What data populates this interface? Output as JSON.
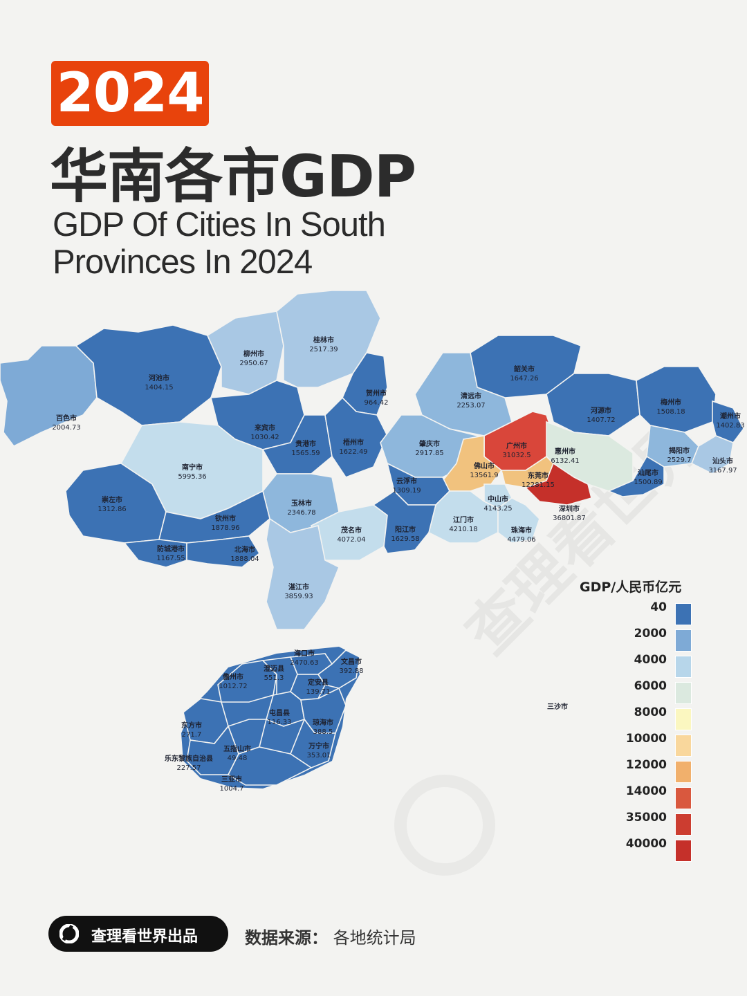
{
  "header": {
    "year": "2024",
    "title_zh": "华南各市GDP",
    "title_en_line1": "GDP Of Cities In South",
    "title_en_line2": "Provinces In 2024"
  },
  "legend": {
    "title": "GDP/人民币亿元",
    "items": [
      {
        "label": "40",
        "color": "#3c72b4"
      },
      {
        "label": "2000",
        "color": "#7eaad6"
      },
      {
        "label": "4000",
        "color": "#b7d6ea"
      },
      {
        "label": "6000",
        "color": "#dbe9df"
      },
      {
        "label": "8000",
        "color": "#fbf7c0"
      },
      {
        "label": "10000",
        "color": "#f9d79c"
      },
      {
        "label": "12000",
        "color": "#f1b06c"
      },
      {
        "label": "14000",
        "color": "#d9583e"
      },
      {
        "label": "35000",
        "color": "#cc3d30"
      },
      {
        "label": "40000",
        "color": "#c5302a"
      }
    ]
  },
  "cities": [
    {
      "name": "百色市",
      "value": "2004.73",
      "color": "#7eaad6"
    },
    {
      "name": "河池市",
      "value": "1404.15",
      "color": "#3c72b4"
    },
    {
      "name": "柳州市",
      "value": "2950.67",
      "color": "#a9c8e4"
    },
    {
      "name": "桂林市",
      "value": "2517.39",
      "color": "#a9c8e4"
    },
    {
      "name": "贺州市",
      "value": "964.42",
      "color": "#3c72b4"
    },
    {
      "name": "来宾市",
      "value": "1030.42",
      "color": "#3c72b4"
    },
    {
      "name": "贵港市",
      "value": "1565.59",
      "color": "#3c72b4"
    },
    {
      "name": "梧州市",
      "value": "1622.49",
      "color": "#3c72b4"
    },
    {
      "name": "南宁市",
      "value": "5995.36",
      "color": "#c3ddec"
    },
    {
      "name": "崇左市",
      "value": "1312.86",
      "color": "#3c72b4"
    },
    {
      "name": "玉林市",
      "value": "2346.78",
      "color": "#8eb7dc"
    },
    {
      "name": "钦州市",
      "value": "1878.96",
      "color": "#3c72b4"
    },
    {
      "name": "防城港市",
      "value": "1167.55",
      "color": "#3c72b4"
    },
    {
      "name": "北海市",
      "value": "1888.04",
      "color": "#3c72b4"
    },
    {
      "name": "韶关市",
      "value": "1647.26",
      "color": "#3c72b4"
    },
    {
      "name": "清远市",
      "value": "2253.07",
      "color": "#8eb7dc"
    },
    {
      "name": "河源市",
      "value": "1407.72",
      "color": "#3c72b4"
    },
    {
      "name": "梅州市",
      "value": "1508.18",
      "color": "#3c72b4"
    },
    {
      "name": "潮州市",
      "value": "1402.83",
      "color": "#3c72b4"
    },
    {
      "name": "肇庆市",
      "value": "2917.85",
      "color": "#8eb7dc"
    },
    {
      "name": "广州市",
      "value": "31032.5",
      "color": "#d9463a"
    },
    {
      "name": "惠州市",
      "value": "6132.41",
      "color": "#dbe9df"
    },
    {
      "name": "揭阳市",
      "value": "2529.7",
      "color": "#8eb7dc"
    },
    {
      "name": "汕头市",
      "value": "3167.97",
      "color": "#a9c8e4"
    },
    {
      "name": "汕尾市",
      "value": "1500.89",
      "color": "#3c72b4"
    },
    {
      "name": "佛山市",
      "value": "13561.9",
      "color": "#f1c27e"
    },
    {
      "name": "东莞市",
      "value": "12281.15",
      "color": "#f1c27e"
    },
    {
      "name": "云浮市",
      "value": "1309.19",
      "color": "#3c72b4"
    },
    {
      "name": "中山市",
      "value": "4143.25",
      "color": "#c3ddec"
    },
    {
      "name": "深圳市",
      "value": "36801.87",
      "color": "#c5302a"
    },
    {
      "name": "江门市",
      "value": "4210.18",
      "color": "#c3ddec"
    },
    {
      "name": "茂名市",
      "value": "4072.04",
      "color": "#c3ddec"
    },
    {
      "name": "阳江市",
      "value": "1629.58",
      "color": "#3c72b4"
    },
    {
      "name": "珠海市",
      "value": "4479.06",
      "color": "#c3ddec"
    },
    {
      "name": "湛江市",
      "value": "3859.93",
      "color": "#a9c8e4"
    },
    {
      "name": "海口市",
      "value": "2470.63",
      "color": "#3c72b4"
    },
    {
      "name": "文昌市",
      "value": "392.88",
      "color": "#3c72b4"
    },
    {
      "name": "儋州市",
      "value": "1012.72",
      "color": "#3c72b4"
    },
    {
      "name": "澄迈县",
      "value": "551.3",
      "color": "#3c72b4"
    },
    {
      "name": "定安县",
      "value": "139.71",
      "color": "#3c72b4"
    },
    {
      "name": "屯昌县",
      "value": "116.33",
      "color": "#3c72b4"
    },
    {
      "name": "琼海市",
      "value": "388.5",
      "color": "#3c72b4"
    },
    {
      "name": "东方市",
      "value": "271.7",
      "color": "#3c72b4"
    },
    {
      "name": "五指山市",
      "value": "49.48",
      "color": "#3c72b4"
    },
    {
      "name": "万宁市",
      "value": "353.01",
      "color": "#3c72b4"
    },
    {
      "name": "乐东黎族自治县",
      "value": "227.57",
      "color": "#3c72b4"
    },
    {
      "name": "三亚市",
      "value": "1004.7",
      "color": "#3c72b4"
    },
    {
      "name": "三沙市",
      "value": "",
      "color": "#3c72b4"
    }
  ],
  "watermark": "查理看世界",
  "footer": {
    "brand": "查理看世界出品",
    "source_label": "数据来源：",
    "source_value": "各地统计局"
  }
}
